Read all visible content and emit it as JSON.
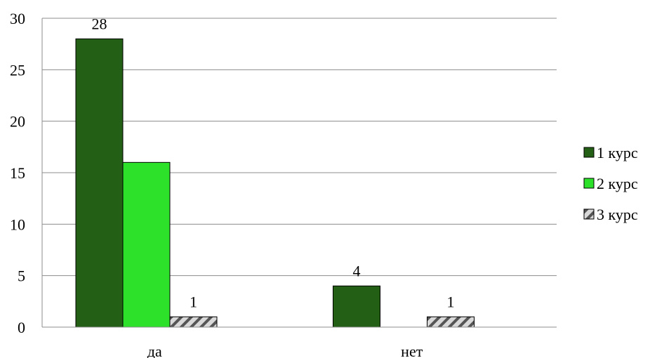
{
  "chart_data": {
    "type": "bar",
    "categories": [
      "да",
      "нет"
    ],
    "series": [
      {
        "name": "1 курс",
        "values": [
          28,
          4
        ],
        "color": "#236015",
        "pattern": "solid",
        "labels": [
          "28",
          "4"
        ]
      },
      {
        "name": "2 курс",
        "values": [
          16,
          0
        ],
        "color": "#2de12a",
        "pattern": "solid",
        "labels": [
          "",
          ""
        ]
      },
      {
        "name": "3 курс",
        "values": [
          1,
          1
        ],
        "color": "#b3b3b3",
        "pattern": "diagonal-hatch",
        "labels": [
          "1",
          "1"
        ]
      }
    ],
    "title": "",
    "xlabel": "",
    "ylabel": "",
    "ylim": [
      0,
      30
    ],
    "yticks": [
      0,
      5,
      10,
      15,
      20,
      25,
      30
    ],
    "grid": true,
    "legend": "right"
  }
}
